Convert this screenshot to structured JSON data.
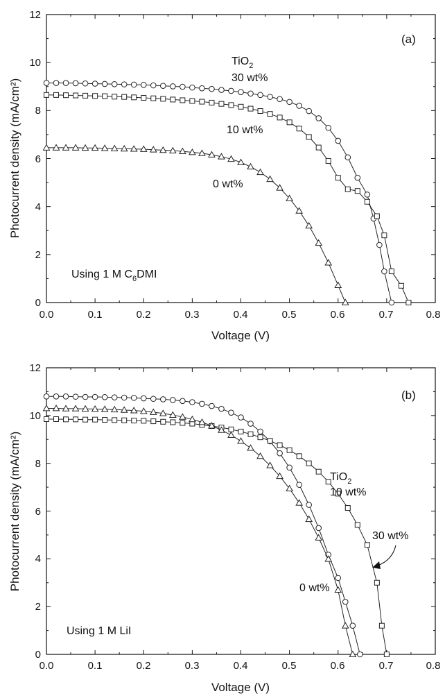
{
  "chart_data": [
    {
      "type": "line",
      "panel_label": "(a)",
      "xlabel": "Voltage (V)",
      "ylabel": "Photocurrent density (mA/cm²)",
      "xlim": [
        0.0,
        0.8
      ],
      "ylim": [
        0,
        12
      ],
      "xticks": [
        "0.0",
        "0.1",
        "0.2",
        "0.3",
        "0.4",
        "0.5",
        "0.6",
        "0.7",
        "0.8"
      ],
      "yticks": [
        "0",
        "2",
        "4",
        "6",
        "8",
        "10",
        "12"
      ],
      "annotations": {
        "tio2": "TiO",
        "tio2_sub": "2",
        "wt30": "30 wt%",
        "wt10": "10 wt%",
        "wt0": "0 wt%",
        "using_prefix": "Using 1 M C",
        "using_sub": "6",
        "using_suffix": "DMI"
      },
      "series": [
        {
          "marker": "circle",
          "points": [
            [
              0.0,
              9.15
            ],
            [
              0.02,
              9.15
            ],
            [
              0.04,
              9.15
            ],
            [
              0.06,
              9.14
            ],
            [
              0.08,
              9.13
            ],
            [
              0.1,
              9.12
            ],
            [
              0.12,
              9.11
            ],
            [
              0.14,
              9.1
            ],
            [
              0.16,
              9.09
            ],
            [
              0.18,
              9.08
            ],
            [
              0.2,
              9.07
            ],
            [
              0.22,
              9.05
            ],
            [
              0.24,
              9.03
            ],
            [
              0.26,
              9.01
            ],
            [
              0.28,
              8.99
            ],
            [
              0.3,
              8.96
            ],
            [
              0.32,
              8.93
            ],
            [
              0.34,
              8.9
            ],
            [
              0.36,
              8.86
            ],
            [
              0.38,
              8.82
            ],
            [
              0.4,
              8.77
            ],
            [
              0.42,
              8.71
            ],
            [
              0.44,
              8.65
            ],
            [
              0.46,
              8.57
            ],
            [
              0.48,
              8.48
            ],
            [
              0.5,
              8.36
            ],
            [
              0.52,
              8.2
            ],
            [
              0.54,
              7.98
            ],
            [
              0.56,
              7.68
            ],
            [
              0.58,
              7.28
            ],
            [
              0.6,
              6.74
            ],
            [
              0.62,
              6.05
            ],
            [
              0.64,
              5.2
            ],
            [
              0.66,
              4.5
            ],
            [
              0.673,
              3.5
            ],
            [
              0.685,
              2.4
            ],
            [
              0.695,
              1.3
            ],
            [
              0.71,
              0.0
            ]
          ]
        },
        {
          "marker": "square",
          "points": [
            [
              0.0,
              8.65
            ],
            [
              0.02,
              8.65
            ],
            [
              0.04,
              8.64
            ],
            [
              0.06,
              8.63
            ],
            [
              0.08,
              8.62
            ],
            [
              0.1,
              8.61
            ],
            [
              0.12,
              8.6
            ],
            [
              0.14,
              8.58
            ],
            [
              0.16,
              8.57
            ],
            [
              0.18,
              8.55
            ],
            [
              0.2,
              8.53
            ],
            [
              0.22,
              8.51
            ],
            [
              0.24,
              8.49
            ],
            [
              0.26,
              8.46
            ],
            [
              0.28,
              8.43
            ],
            [
              0.3,
              8.4
            ],
            [
              0.32,
              8.37
            ],
            [
              0.34,
              8.33
            ],
            [
              0.36,
              8.28
            ],
            [
              0.38,
              8.23
            ],
            [
              0.4,
              8.16
            ],
            [
              0.42,
              8.08
            ],
            [
              0.44,
              7.98
            ],
            [
              0.46,
              7.86
            ],
            [
              0.48,
              7.71
            ],
            [
              0.5,
              7.51
            ],
            [
              0.52,
              7.25
            ],
            [
              0.54,
              6.9
            ],
            [
              0.56,
              6.46
            ],
            [
              0.58,
              5.9
            ],
            [
              0.6,
              5.2
            ],
            [
              0.62,
              4.72
            ],
            [
              0.64,
              4.65
            ],
            [
              0.66,
              4.2
            ],
            [
              0.68,
              3.6
            ],
            [
              0.695,
              2.8
            ],
            [
              0.71,
              1.3
            ],
            [
              0.73,
              0.7
            ],
            [
              0.745,
              0.0
            ]
          ]
        },
        {
          "marker": "triangle",
          "points": [
            [
              0.0,
              6.45
            ],
            [
              0.02,
              6.45
            ],
            [
              0.04,
              6.45
            ],
            [
              0.06,
              6.45
            ],
            [
              0.08,
              6.44
            ],
            [
              0.1,
              6.44
            ],
            [
              0.12,
              6.43
            ],
            [
              0.14,
              6.42
            ],
            [
              0.16,
              6.41
            ],
            [
              0.18,
              6.4
            ],
            [
              0.2,
              6.39
            ],
            [
              0.22,
              6.37
            ],
            [
              0.24,
              6.35
            ],
            [
              0.26,
              6.33
            ],
            [
              0.28,
              6.3
            ],
            [
              0.3,
              6.26
            ],
            [
              0.32,
              6.22
            ],
            [
              0.34,
              6.16
            ],
            [
              0.36,
              6.08
            ],
            [
              0.38,
              5.98
            ],
            [
              0.4,
              5.84
            ],
            [
              0.42,
              5.66
            ],
            [
              0.44,
              5.43
            ],
            [
              0.46,
              5.14
            ],
            [
              0.48,
              4.78
            ],
            [
              0.5,
              4.34
            ],
            [
              0.52,
              3.82
            ],
            [
              0.54,
              3.2
            ],
            [
              0.56,
              2.48
            ],
            [
              0.58,
              1.66
            ],
            [
              0.6,
              0.72
            ],
            [
              0.615,
              0.0
            ]
          ]
        }
      ]
    },
    {
      "type": "line",
      "panel_label": "(b)",
      "xlabel": "Voltage (V)",
      "ylabel": "Photocurrent density (mA/cm²)",
      "xlim": [
        0.0,
        0.8
      ],
      "ylim": [
        0,
        12
      ],
      "xticks": [
        "0.0",
        "0.1",
        "0.2",
        "0.3",
        "0.4",
        "0.5",
        "0.6",
        "0.7",
        "0.8"
      ],
      "yticks": [
        "0",
        "2",
        "4",
        "6",
        "8",
        "10",
        "12"
      ],
      "annotations": {
        "tio2": "TiO",
        "tio2_sub": "2",
        "wt10": "10 wt%",
        "wt30": "30 wt%",
        "wt0": "0 wt%",
        "using": "Using 1 M LiI"
      },
      "series": [
        {
          "marker": "circle",
          "points": [
            [
              0.0,
              10.8
            ],
            [
              0.02,
              10.8
            ],
            [
              0.04,
              10.8
            ],
            [
              0.06,
              10.79
            ],
            [
              0.08,
              10.78
            ],
            [
              0.1,
              10.78
            ],
            [
              0.12,
              10.77
            ],
            [
              0.14,
              10.76
            ],
            [
              0.16,
              10.75
            ],
            [
              0.18,
              10.74
            ],
            [
              0.2,
              10.72
            ],
            [
              0.22,
              10.7
            ],
            [
              0.24,
              10.68
            ],
            [
              0.26,
              10.65
            ],
            [
              0.28,
              10.61
            ],
            [
              0.3,
              10.56
            ],
            [
              0.32,
              10.49
            ],
            [
              0.34,
              10.4
            ],
            [
              0.36,
              10.28
            ],
            [
              0.38,
              10.12
            ],
            [
              0.4,
              9.92
            ],
            [
              0.42,
              9.66
            ],
            [
              0.44,
              9.33
            ],
            [
              0.46,
              8.92
            ],
            [
              0.48,
              8.42
            ],
            [
              0.5,
              7.82
            ],
            [
              0.52,
              7.1
            ],
            [
              0.54,
              6.26
            ],
            [
              0.56,
              5.29
            ],
            [
              0.58,
              4.17
            ],
            [
              0.6,
              3.2
            ],
            [
              0.615,
              2.2
            ],
            [
              0.63,
              1.2
            ],
            [
              0.645,
              0.0
            ]
          ]
        },
        {
          "marker": "square",
          "points": [
            [
              0.0,
              9.85
            ],
            [
              0.02,
              9.85
            ],
            [
              0.04,
              9.84
            ],
            [
              0.06,
              9.84
            ],
            [
              0.08,
              9.83
            ],
            [
              0.1,
              9.83
            ],
            [
              0.12,
              9.82
            ],
            [
              0.14,
              9.81
            ],
            [
              0.16,
              9.8
            ],
            [
              0.18,
              9.79
            ],
            [
              0.2,
              9.78
            ],
            [
              0.22,
              9.76
            ],
            [
              0.24,
              9.74
            ],
            [
              0.26,
              9.72
            ],
            [
              0.28,
              9.69
            ],
            [
              0.3,
              9.66
            ],
            [
              0.32,
              9.61
            ],
            [
              0.34,
              9.56
            ],
            [
              0.36,
              9.5
            ],
            [
              0.38,
              9.42
            ],
            [
              0.4,
              9.33
            ],
            [
              0.42,
              9.22
            ],
            [
              0.44,
              9.09
            ],
            [
              0.46,
              8.94
            ],
            [
              0.48,
              8.76
            ],
            [
              0.5,
              8.55
            ],
            [
              0.52,
              8.3
            ],
            [
              0.54,
              8.0
            ],
            [
              0.56,
              7.65
            ],
            [
              0.58,
              7.23
            ],
            [
              0.6,
              6.73
            ],
            [
              0.62,
              6.13
            ],
            [
              0.64,
              5.42
            ],
            [
              0.66,
              4.58
            ],
            [
              0.68,
              3.0
            ],
            [
              0.69,
              1.2
            ],
            [
              0.7,
              0.0
            ]
          ]
        },
        {
          "marker": "triangle",
          "points": [
            [
              0.0,
              10.3
            ],
            [
              0.02,
              10.3
            ],
            [
              0.04,
              10.29
            ],
            [
              0.06,
              10.29
            ],
            [
              0.08,
              10.28
            ],
            [
              0.1,
              10.27
            ],
            [
              0.12,
              10.26
            ],
            [
              0.14,
              10.25
            ],
            [
              0.16,
              10.23
            ],
            [
              0.18,
              10.21
            ],
            [
              0.2,
              10.18
            ],
            [
              0.22,
              10.14
            ],
            [
              0.24,
              10.09
            ],
            [
              0.26,
              10.02
            ],
            [
              0.28,
              9.94
            ],
            [
              0.3,
              9.84
            ],
            [
              0.32,
              9.72
            ],
            [
              0.34,
              9.57
            ],
            [
              0.36,
              9.39
            ],
            [
              0.38,
              9.18
            ],
            [
              0.4,
              8.93
            ],
            [
              0.42,
              8.64
            ],
            [
              0.44,
              8.3
            ],
            [
              0.46,
              7.91
            ],
            [
              0.48,
              7.46
            ],
            [
              0.5,
              6.94
            ],
            [
              0.52,
              6.34
            ],
            [
              0.54,
              5.66
            ],
            [
              0.56,
              4.88
            ],
            [
              0.58,
              3.99
            ],
            [
              0.6,
              2.7
            ],
            [
              0.615,
              1.2
            ],
            [
              0.63,
              0.0
            ]
          ]
        }
      ]
    }
  ]
}
